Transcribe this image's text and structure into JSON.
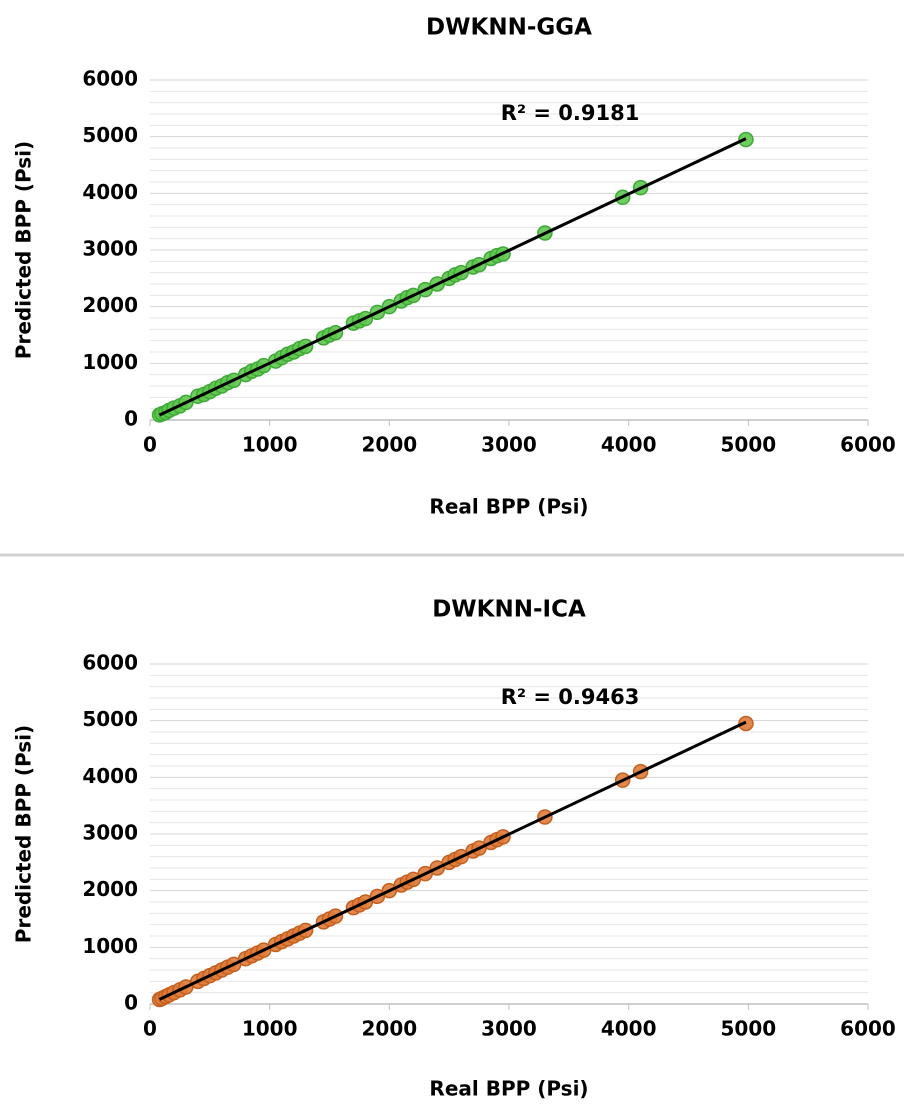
{
  "chart_data": [
    {
      "type": "scatter",
      "title": "DWKNN-GGA",
      "x_label": "Real BPP (Psi)",
      "y_label": "Predicted BPP (Psi)",
      "annotation": "R² = 0.9181",
      "x": [
        80,
        100,
        130,
        160,
        200,
        250,
        300,
        400,
        450,
        500,
        550,
        600,
        650,
        700,
        800,
        850,
        900,
        950,
        1050,
        1100,
        1150,
        1200,
        1250,
        1300,
        1450,
        1500,
        1550,
        1700,
        1750,
        1800,
        1900,
        2000,
        2100,
        2150,
        2200,
        2300,
        2400,
        2500,
        2550,
        2600,
        2700,
        2750,
        2850,
        2900,
        2950,
        3300,
        3950,
        4100,
        4980
      ],
      "values": [
        90,
        110,
        130,
        170,
        210,
        250,
        310,
        420,
        450,
        500,
        560,
        600,
        660,
        700,
        800,
        860,
        900,
        960,
        1040,
        1100,
        1160,
        1200,
        1260,
        1300,
        1450,
        1500,
        1540,
        1710,
        1750,
        1790,
        1900,
        2000,
        2100,
        2160,
        2200,
        2300,
        2400,
        2500,
        2560,
        2600,
        2700,
        2740,
        2850,
        2900,
        2930,
        3300,
        3930,
        4100,
        4950
      ],
      "color": "#5ec84e",
      "edge_color": "#3caa35",
      "xlim": [
        0,
        6000
      ],
      "ylim": [
        0,
        6000
      ],
      "xticks": [
        0,
        1000,
        2000,
        3000,
        4000,
        5000,
        6000
      ],
      "yticks": [
        0,
        1000,
        2000,
        3000,
        4000,
        5000,
        6000
      ],
      "grid": true,
      "trendline": "linear"
    },
    {
      "type": "scatter",
      "title": "DWKNN-ICA",
      "x_label": "Real BPP (Psi)",
      "y_label": "Predicted BPP (Psi)",
      "annotation": "R² = 0.9463",
      "x": [
        80,
        100,
        130,
        160,
        200,
        250,
        300,
        400,
        450,
        500,
        550,
        600,
        650,
        700,
        800,
        850,
        900,
        950,
        1050,
        1100,
        1150,
        1200,
        1250,
        1300,
        1450,
        1500,
        1550,
        1700,
        1750,
        1800,
        1900,
        2000,
        2100,
        2150,
        2200,
        2300,
        2400,
        2500,
        2550,
        2600,
        2700,
        2750,
        2850,
        2900,
        2950,
        3300,
        3950,
        4100,
        4980
      ],
      "values": [
        80,
        100,
        130,
        160,
        200,
        250,
        300,
        400,
        450,
        500,
        550,
        600,
        650,
        700,
        800,
        850,
        900,
        950,
        1050,
        1100,
        1150,
        1200,
        1250,
        1300,
        1450,
        1500,
        1550,
        1700,
        1750,
        1800,
        1900,
        2000,
        2100,
        2150,
        2200,
        2300,
        2400,
        2500,
        2550,
        2600,
        2700,
        2750,
        2850,
        2900,
        2950,
        3300,
        3950,
        4100,
        4950
      ],
      "color": "#e07b39",
      "edge_color": "#c45f1c",
      "xlim": [
        0,
        6000
      ],
      "ylim": [
        0,
        6000
      ],
      "xticks": [
        0,
        1000,
        2000,
        3000,
        4000,
        5000,
        6000
      ],
      "yticks": [
        0,
        1000,
        2000,
        3000,
        4000,
        5000,
        6000
      ],
      "grid": true,
      "trendline": "linear"
    }
  ]
}
